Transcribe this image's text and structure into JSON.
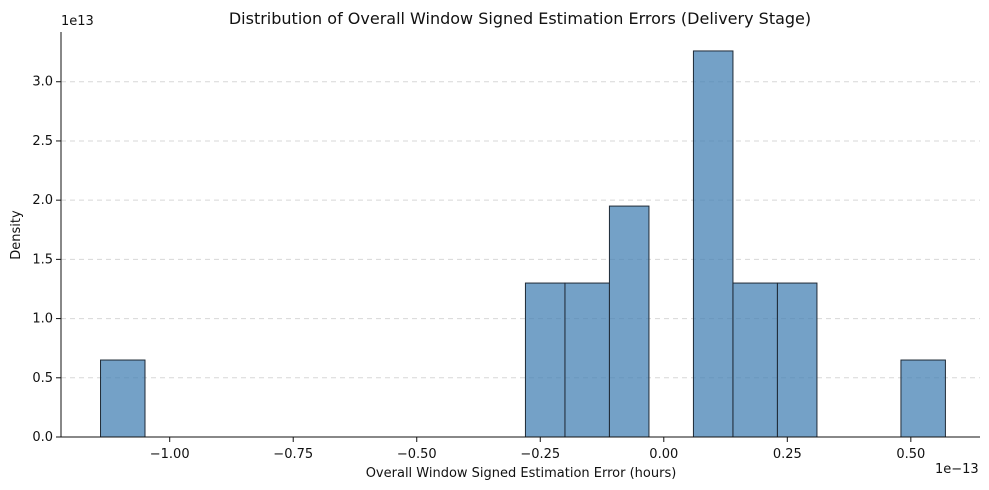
{
  "chart_data": {
    "type": "bar",
    "title": "Distribution of Overall Window Signed Estimation Errors (Delivery Stage)",
    "xlabel": "Overall Window Signed Estimation Error (hours)",
    "ylabel": "Density",
    "x_offset_label": "1e−13",
    "y_offset_label": "1e13",
    "xlim": [
      -1.22,
      0.64
    ],
    "ylim": [
      0,
      3.42
    ],
    "xticks": [
      -1.0,
      -0.75,
      -0.5,
      -0.25,
      0.0,
      0.25,
      0.5
    ],
    "xtick_labels": [
      "−1.00",
      "−0.75",
      "−0.50",
      "−0.25",
      "0.00",
      "0.25",
      "0.50"
    ],
    "yticks": [
      0.0,
      0.5,
      1.0,
      1.5,
      2.0,
      2.5,
      3.0
    ],
    "ytick_labels": [
      "0.0",
      "0.5",
      "1.0",
      "1.5",
      "2.0",
      "2.5",
      "3.0"
    ],
    "grid": {
      "y": true,
      "x": false
    },
    "bins": [
      {
        "x0": -1.14,
        "x1": -1.05,
        "density": 0.65
      },
      {
        "x0": -1.05,
        "x1": -0.96,
        "density": 0.0
      },
      {
        "x0": -0.96,
        "x1": -0.88,
        "density": 0.0
      },
      {
        "x0": -0.88,
        "x1": -0.79,
        "density": 0.0
      },
      {
        "x0": -0.79,
        "x1": -0.71,
        "density": 0.0
      },
      {
        "x0": -0.71,
        "x1": -0.62,
        "density": 0.0
      },
      {
        "x0": -0.62,
        "x1": -0.54,
        "density": 0.0
      },
      {
        "x0": -0.54,
        "x1": -0.45,
        "density": 0.0
      },
      {
        "x0": -0.45,
        "x1": -0.37,
        "density": 0.0
      },
      {
        "x0": -0.37,
        "x1": -0.28,
        "density": 0.0
      },
      {
        "x0": -0.28,
        "x1": -0.2,
        "density": 1.3
      },
      {
        "x0": -0.2,
        "x1": -0.11,
        "density": 1.3
      },
      {
        "x0": -0.11,
        "x1": -0.03,
        "density": 1.95
      },
      {
        "x0": -0.03,
        "x1": 0.06,
        "density": 0.0
      },
      {
        "x0": 0.06,
        "x1": 0.14,
        "density": 3.26
      },
      {
        "x0": 0.14,
        "x1": 0.23,
        "density": 1.3
      },
      {
        "x0": 0.23,
        "x1": 0.31,
        "density": 1.3
      },
      {
        "x0": 0.31,
        "x1": 0.4,
        "density": 0.0
      },
      {
        "x0": 0.4,
        "x1": 0.48,
        "density": 0.0
      },
      {
        "x0": 0.48,
        "x1": 0.57,
        "density": 0.65
      }
    ],
    "colors": {
      "bar_fill": "#4682b4",
      "bar_stroke": "#1f2a36",
      "grid": "#d7d7d7",
      "axis": "#111111"
    }
  }
}
